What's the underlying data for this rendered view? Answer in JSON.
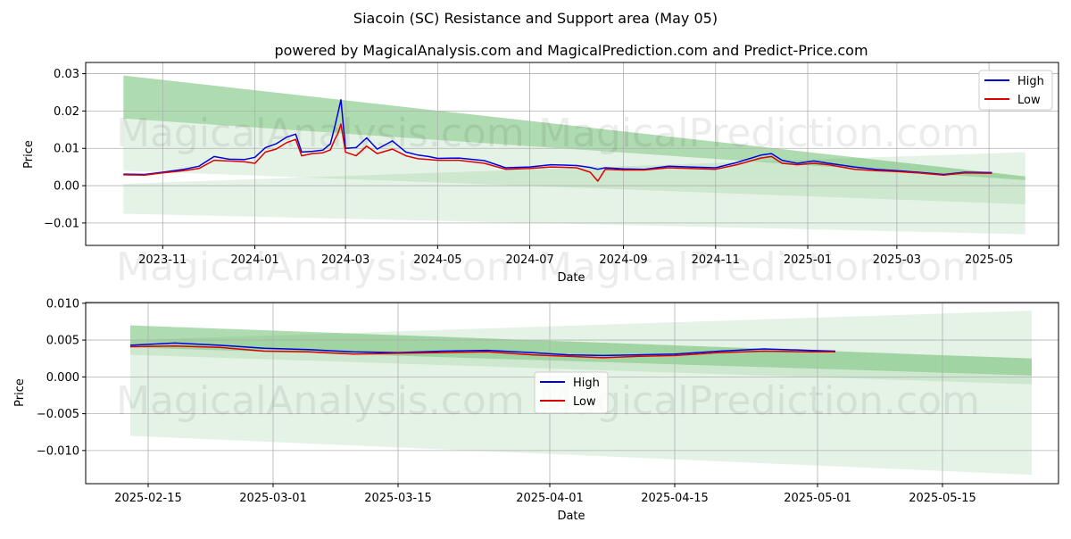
{
  "figure": {
    "title": "Siacoin (SC) Resistance and Support area (May 05)",
    "subtitle": "powered by MagicalAnalysis.com and MagicalPrediction.com and Predict-Price.com",
    "watermark_left": "MagicalAnalysis.com",
    "watermark_right": "MagicalPrediction.com"
  },
  "colors": {
    "high": "#0000dd",
    "low": "#dd0000",
    "band": "#4caf50",
    "grid": "#b0b0b0"
  },
  "chart_data": [
    {
      "type": "line",
      "xlabel": "Date",
      "ylabel": "Price",
      "legend_position": "top-right",
      "grid": true,
      "xlim": [
        "2023-09-11",
        "2025-06-16"
      ],
      "ylim": [
        -0.016,
        0.033
      ],
      "x_ticks": [
        "2023-11",
        "2024-01",
        "2024-03",
        "2024-05",
        "2024-07",
        "2024-09",
        "2024-11",
        "2025-01",
        "2025-03",
        "2025-05"
      ],
      "x_tick_dates": [
        "2023-11-01",
        "2024-01-01",
        "2024-03-01",
        "2024-05-01",
        "2024-07-01",
        "2024-09-01",
        "2024-11-01",
        "2025-01-01",
        "2025-03-01",
        "2025-05-01"
      ],
      "y_ticks": [
        0.03,
        0.02,
        0.01,
        0.0,
        -0.01
      ],
      "y_tick_labels": [
        "0.03",
        "0.02",
        "0.01",
        "0.00",
        "−0.01"
      ],
      "bands": [
        {
          "x": [
            "2023-10-06",
            "2025-05-25"
          ],
          "upper": [
            0.0295,
            0.0025
          ],
          "lower": [
            0.018,
            0.0015
          ],
          "opacity": 0.35
        },
        {
          "x": [
            "2023-10-06",
            "2025-05-25"
          ],
          "upper": [
            0.0295,
            0.0025
          ],
          "lower": [
            0.004,
            -0.005
          ],
          "opacity": 0.15
        },
        {
          "x": [
            "2023-10-06",
            "2025-05-25"
          ],
          "upper": [
            0.0005,
            0.009
          ],
          "lower": [
            -0.0075,
            -0.013
          ],
          "opacity": 0.15
        }
      ],
      "series": [
        {
          "name": "High",
          "x": [
            "2023-10-06",
            "2023-10-20",
            "2023-11-01",
            "2023-11-15",
            "2023-11-25",
            "2023-12-05",
            "2023-12-15",
            "2023-12-25",
            "2024-01-01",
            "2024-01-08",
            "2024-01-15",
            "2024-01-22",
            "2024-01-28",
            "2024-02-01",
            "2024-02-08",
            "2024-02-15",
            "2024-02-20",
            "2024-02-23",
            "2024-02-25",
            "2024-02-27",
            "2024-03-01",
            "2024-03-08",
            "2024-03-15",
            "2024-03-22",
            "2024-04-01",
            "2024-04-10",
            "2024-04-18",
            "2024-04-25",
            "2024-05-01",
            "2024-05-15",
            "2024-06-01",
            "2024-06-15",
            "2024-07-01",
            "2024-07-15",
            "2024-08-01",
            "2024-08-10",
            "2024-08-15",
            "2024-08-20",
            "2024-09-01",
            "2024-09-15",
            "2024-10-01",
            "2024-10-15",
            "2024-11-01",
            "2024-11-15",
            "2024-12-01",
            "2024-12-08",
            "2024-12-15",
            "2024-12-25",
            "2025-01-05",
            "2025-01-15",
            "2025-02-01",
            "2025-02-15",
            "2025-03-01",
            "2025-03-15",
            "2025-04-01",
            "2025-04-15",
            "2025-05-03"
          ],
          "y": [
            0.0031,
            0.003,
            0.0036,
            0.0044,
            0.0052,
            0.0078,
            0.0071,
            0.007,
            0.0076,
            0.0102,
            0.0112,
            0.013,
            0.0138,
            0.009,
            0.0092,
            0.0095,
            0.0112,
            0.016,
            0.0195,
            0.023,
            0.01,
            0.0102,
            0.0128,
            0.0098,
            0.012,
            0.009,
            0.0082,
            0.0078,
            0.0073,
            0.0074,
            0.0067,
            0.0048,
            0.005,
            0.0056,
            0.0054,
            0.0049,
            0.0044,
            0.0048,
            0.0045,
            0.0044,
            0.0052,
            0.005,
            0.0048,
            0.0062,
            0.0082,
            0.0086,
            0.0068,
            0.006,
            0.0066,
            0.006,
            0.005,
            0.0044,
            0.004,
            0.0036,
            0.003,
            0.0036,
            0.0035
          ]
        },
        {
          "name": "Low",
          "x": [
            "2023-10-06",
            "2023-10-20",
            "2023-11-01",
            "2023-11-15",
            "2023-11-25",
            "2023-12-05",
            "2023-12-15",
            "2023-12-25",
            "2024-01-01",
            "2024-01-08",
            "2024-01-15",
            "2024-01-22",
            "2024-01-28",
            "2024-02-01",
            "2024-02-08",
            "2024-02-15",
            "2024-02-20",
            "2024-02-23",
            "2024-02-25",
            "2024-02-27",
            "2024-03-01",
            "2024-03-08",
            "2024-03-15",
            "2024-03-22",
            "2024-04-01",
            "2024-04-10",
            "2024-04-18",
            "2024-04-25",
            "2024-05-01",
            "2024-05-15",
            "2024-06-01",
            "2024-06-15",
            "2024-07-01",
            "2024-07-15",
            "2024-08-01",
            "2024-08-10",
            "2024-08-15",
            "2024-08-20",
            "2024-09-01",
            "2024-09-15",
            "2024-10-01",
            "2024-10-15",
            "2024-11-01",
            "2024-11-15",
            "2024-12-01",
            "2024-12-08",
            "2024-12-15",
            "2024-12-25",
            "2025-01-05",
            "2025-01-15",
            "2025-02-01",
            "2025-02-15",
            "2025-03-01",
            "2025-03-15",
            "2025-04-01",
            "2025-04-15",
            "2025-05-03"
          ],
          "y": [
            0.0029,
            0.0028,
            0.0034,
            0.004,
            0.0046,
            0.0068,
            0.0066,
            0.0064,
            0.006,
            0.009,
            0.0098,
            0.0115,
            0.0124,
            0.008,
            0.0086,
            0.0088,
            0.0096,
            0.0125,
            0.014,
            0.0165,
            0.009,
            0.008,
            0.0106,
            0.0086,
            0.0098,
            0.008,
            0.0072,
            0.007,
            0.0068,
            0.0068,
            0.006,
            0.0044,
            0.0046,
            0.005,
            0.0048,
            0.0036,
            0.0012,
            0.0044,
            0.0042,
            0.0042,
            0.0048,
            0.0046,
            0.0044,
            0.0056,
            0.0074,
            0.0078,
            0.006,
            0.0056,
            0.006,
            0.0056,
            0.0044,
            0.004,
            0.0038,
            0.0034,
            0.0028,
            0.0034,
            0.0033
          ]
        }
      ]
    },
    {
      "type": "line",
      "xlabel": "Date",
      "ylabel": "Price",
      "legend_position": "center",
      "grid": true,
      "xlim": [
        "2025-02-08",
        "2025-05-28"
      ],
      "ylim": [
        -0.0145,
        0.0101
      ],
      "x_ticks": [
        "2025-02-15",
        "2025-03-01",
        "2025-03-15",
        "2025-04-01",
        "2025-04-15",
        "2025-05-01",
        "2025-05-15"
      ],
      "x_tick_dates": [
        "2025-02-15",
        "2025-03-01",
        "2025-03-15",
        "2025-04-01",
        "2025-04-15",
        "2025-05-01",
        "2025-05-15"
      ],
      "y_ticks": [
        0.01,
        0.005,
        0.0,
        -0.005,
        -0.01
      ],
      "y_tick_labels": [
        "0.010",
        "0.005",
        "0.000",
        "−0.005",
        "−0.010"
      ],
      "bands": [
        {
          "x": [
            "2025-02-13",
            "2025-05-25"
          ],
          "upper": [
            0.007,
            0.0025
          ],
          "lower": [
            0.004,
            0.0002
          ],
          "opacity": 0.35
        },
        {
          "x": [
            "2025-02-13",
            "2025-05-25"
          ],
          "upper": [
            0.007,
            0.0025
          ],
          "lower": [
            0.003,
            -0.001
          ],
          "opacity": 0.15
        },
        {
          "x": [
            "2025-02-13",
            "2025-05-25"
          ],
          "upper": [
            0.005,
            0.009
          ],
          "lower": [
            -0.008,
            -0.0133
          ],
          "opacity": 0.15
        }
      ],
      "series": [
        {
          "name": "High",
          "x": [
            "2025-02-13",
            "2025-02-18",
            "2025-02-23",
            "2025-02-28",
            "2025-03-05",
            "2025-03-10",
            "2025-03-15",
            "2025-03-20",
            "2025-03-25",
            "2025-03-30",
            "2025-04-03",
            "2025-04-07",
            "2025-04-11",
            "2025-04-15",
            "2025-04-20",
            "2025-04-25",
            "2025-04-30",
            "2025-05-03"
          ],
          "y": [
            0.0043,
            0.0046,
            0.0043,
            0.0039,
            0.0037,
            0.0034,
            0.0033,
            0.0035,
            0.0036,
            0.0033,
            0.003,
            0.0029,
            0.003,
            0.0031,
            0.0035,
            0.0038,
            0.0036,
            0.0035
          ]
        },
        {
          "name": "Low",
          "x": [
            "2025-02-13",
            "2025-02-18",
            "2025-02-23",
            "2025-02-28",
            "2025-03-05",
            "2025-03-10",
            "2025-03-15",
            "2025-03-20",
            "2025-03-25",
            "2025-03-30",
            "2025-04-03",
            "2025-04-07",
            "2025-04-11",
            "2025-04-15",
            "2025-04-20",
            "2025-04-25",
            "2025-04-30",
            "2025-05-03"
          ],
          "y": [
            0.0041,
            0.0042,
            0.004,
            0.0035,
            0.0034,
            0.0031,
            0.0032,
            0.0033,
            0.0034,
            0.003,
            0.0028,
            0.0026,
            0.0028,
            0.0029,
            0.0033,
            0.0035,
            0.0034,
            0.0034
          ]
        }
      ]
    }
  ]
}
